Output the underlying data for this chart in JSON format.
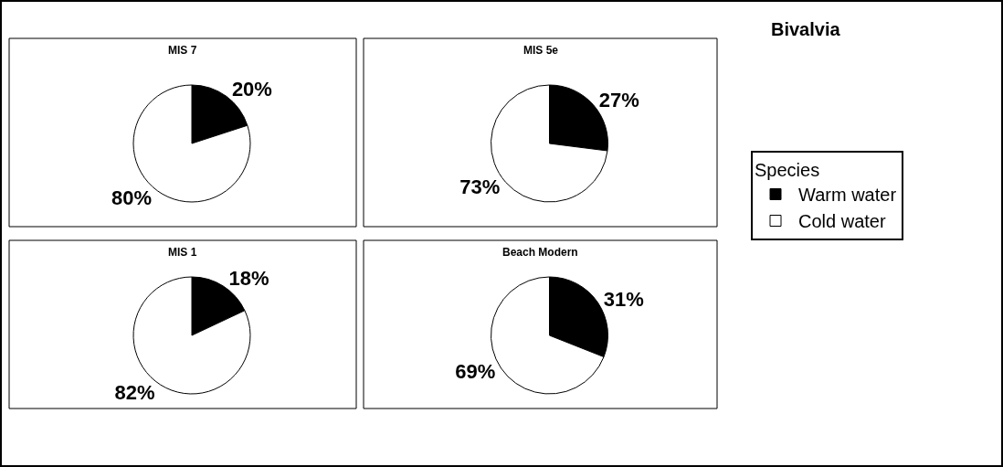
{
  "chart_data": [
    {
      "type": "pie",
      "title": "MIS 7",
      "categories": [
        "Warm water",
        "Cold water"
      ],
      "values": [
        20,
        80
      ],
      "value_labels": [
        "20%",
        "80%"
      ],
      "colors": [
        "#000000",
        "#ffffff"
      ],
      "legend": "right",
      "legend_title": "Species"
    },
    {
      "type": "pie",
      "title": "MIS 5e",
      "categories": [
        null,
        null
      ],
      "values": [
        27,
        73
      ],
      "value_labels": [
        "27%",
        "73%"
      ],
      "colors": [
        "#000000",
        "#ffffff"
      ]
    },
    {
      "type": "pie",
      "title": "MIS 1",
      "categories": [
        null,
        null
      ],
      "values": [
        18,
        82
      ],
      "value_labels": [
        "18%",
        "82%"
      ],
      "colors": [
        "#000000",
        "#ffffff"
      ]
    },
    {
      "type": "pie",
      "title": "Beach Modern",
      "categories": [
        null,
        null
      ],
      "values": [
        31,
        69
      ],
      "value_labels": [
        "31%",
        "69%"
      ],
      "colors": [
        "#000000",
        "#ffffff"
      ]
    },
    {
      "type": "other",
      "title": "Bivalvia"
    }
  ]
}
